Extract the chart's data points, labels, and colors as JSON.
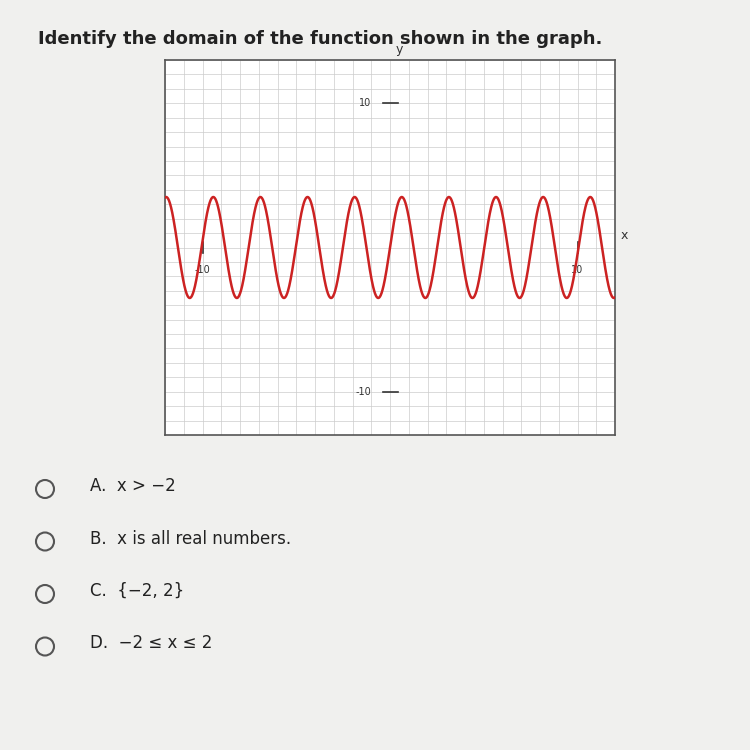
{
  "title": "Identify the domain of the function shown in the graph.",
  "title_fontsize": 13,
  "title_color": "#222222",
  "bg_color": "#f0f0ee",
  "graph_bg_color": "#ffffff",
  "graph_border_color": "#555555",
  "grid_color": "#cccccc",
  "axis_color": "#333333",
  "wave_color": "#cc2222",
  "wave_amplitude": 3.5,
  "wave_frequency": 2.5,
  "xlim": [
    -12,
    12
  ],
  "ylim": [
    -13,
    13
  ],
  "x_tick_label_10": "10",
  "x_tick_label_neg10": "-10",
  "y_tick_label_10": "10",
  "y_tick_label_neg10": "-10",
  "axis_label_x": "x",
  "axis_label_y": "y",
  "choices": [
    "A.  x > −2",
    "B.  x is all real numbers.",
    "C.  {−2, 2}",
    "D.  −2 ≤ x ≤ 2"
  ],
  "choice_fontsize": 12,
  "choice_color": "#222222"
}
